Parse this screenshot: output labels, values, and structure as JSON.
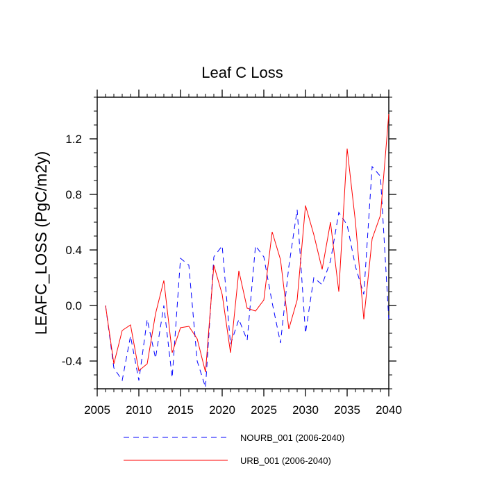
{
  "chart_data": {
    "type": "line",
    "title": "Leaf C Loss",
    "xlabel": "",
    "ylabel": "LEAFC_LOSS  (PgC/m2y)",
    "xlim": [
      2005,
      2040
    ],
    "ylim": [
      -0.6,
      1.5
    ],
    "x_ticks": [
      2005,
      2010,
      2015,
      2020,
      2025,
      2030,
      2035,
      2040
    ],
    "x_tick_labels": [
      "2005",
      "2010",
      "2015",
      "2020",
      "2025",
      "2030",
      "2035",
      "2040"
    ],
    "y_ticks": [
      -0.4,
      0.0,
      0.4,
      0.8,
      1.2
    ],
    "y_tick_labels": [
      "-0.4",
      "0.0",
      "0.4",
      "0.8",
      "1.2"
    ],
    "grid": false,
    "legend_position": "bottom",
    "x": [
      2006,
      2007,
      2008,
      2009,
      2010,
      2011,
      2012,
      2013,
      2014,
      2015,
      2016,
      2017,
      2018,
      2019,
      2020,
      2021,
      2022,
      2023,
      2024,
      2025,
      2026,
      2027,
      2028,
      2029,
      2030,
      2031,
      2032,
      2033,
      2034,
      2035,
      2036,
      2037,
      2038,
      2039,
      2040
    ],
    "series": [
      {
        "name": "NOURB_001 (2006-2040)",
        "color": "#0000ff",
        "style": "dashed",
        "values": [
          0.0,
          -0.45,
          -0.54,
          -0.22,
          -0.54,
          -0.1,
          -0.38,
          0.0,
          -0.52,
          0.34,
          0.29,
          -0.4,
          -0.59,
          0.35,
          0.43,
          -0.28,
          -0.1,
          -0.25,
          0.43,
          0.35,
          0.02,
          -0.27,
          0.28,
          0.69,
          -0.2,
          0.2,
          0.15,
          0.32,
          0.67,
          0.58,
          0.28,
          0.08,
          1.0,
          0.93,
          -0.1
        ]
      },
      {
        "name": "URB_001 (2006-2040)",
        "color": "#ff0000",
        "style": "solid",
        "values": [
          0.0,
          -0.42,
          -0.18,
          -0.14,
          -0.47,
          -0.42,
          -0.06,
          0.18,
          -0.34,
          -0.16,
          -0.15,
          -0.24,
          -0.48,
          0.29,
          0.08,
          -0.34,
          0.25,
          -0.02,
          -0.04,
          0.04,
          0.53,
          0.33,
          -0.17,
          0.04,
          0.72,
          0.51,
          0.26,
          0.6,
          0.1,
          1.13,
          0.6,
          -0.1,
          0.48,
          0.65,
          1.38
        ]
      }
    ]
  }
}
